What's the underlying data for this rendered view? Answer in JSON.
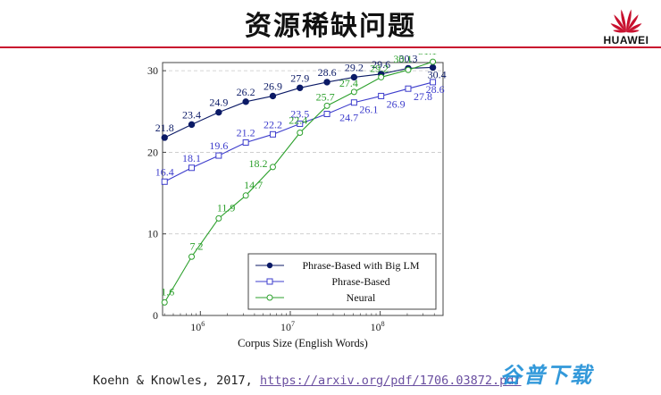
{
  "slide": {
    "title": "资源稀缺问题",
    "logo_text": "HUAWEI",
    "citation_text": "Koehn & Knowles, 2017, ",
    "citation_link": "https://arxiv.org/pdf/1706.03872.pdf",
    "watermark": "谷普下载"
  },
  "colors": {
    "accent_red": "#c8102e",
    "series_bigLM": "#0b1a66",
    "series_phrase": "#3d3dcc",
    "series_neural": "#2ca02c"
  },
  "chart_data": {
    "type": "line",
    "xlabel": "Corpus Size (English Words)",
    "ylabel": "",
    "x_scale": "log",
    "xlim": [
      380000,
      500000000
    ],
    "ylim": [
      0,
      31
    ],
    "x_ticks": [
      {
        "value": 1000000,
        "base": "10",
        "exp": "6"
      },
      {
        "value": 10000000,
        "base": "10",
        "exp": "7"
      },
      {
        "value": 100000000,
        "base": "10",
        "exp": "8"
      }
    ],
    "y_ticks": [
      0,
      10,
      20,
      30
    ],
    "grid": "horizontal dashed",
    "legend_position": "bottom-right",
    "series": [
      {
        "name": "Phrase-Based with Big LM",
        "color": "#0b1a66",
        "marker": "filled-circle",
        "x": [
          400000,
          800000,
          1600000,
          3200000,
          6400000,
          12800000,
          25600000,
          51200000,
          102400000,
          204800000,
          385000000
        ],
        "y": [
          21.8,
          23.4,
          24.9,
          26.2,
          26.9,
          27.9,
          28.6,
          29.2,
          29.6,
          30.3,
          30.4
        ],
        "labels": [
          "21.8",
          "23.4",
          "24.9",
          "26.2",
          "26.9",
          "27.9",
          "28.6",
          "29.2",
          "29.6",
          "30.3",
          "30.4"
        ]
      },
      {
        "name": "Phrase-Based",
        "color": "#3d3dcc",
        "marker": "square",
        "x": [
          400000,
          800000,
          1600000,
          3200000,
          6400000,
          12800000,
          25600000,
          51200000,
          102400000,
          204800000,
          385000000
        ],
        "y": [
          16.4,
          18.1,
          19.6,
          21.2,
          22.2,
          23.5,
          24.7,
          26.1,
          26.9,
          27.8,
          28.6
        ],
        "labels": [
          "16.4",
          "18.1",
          "19.6",
          "21.2",
          "22.2",
          "23.5",
          "24.7",
          "26.1",
          "26.9",
          "27.8",
          "28.6"
        ]
      },
      {
        "name": "Neural",
        "color": "#2ca02c",
        "marker": "open-circle",
        "x": [
          400000,
          800000,
          1600000,
          3200000,
          6400000,
          12800000,
          25600000,
          51200000,
          102400000,
          204800000,
          385000000
        ],
        "y": [
          1.6,
          7.2,
          11.9,
          14.7,
          18.2,
          22.4,
          25.7,
          27.4,
          29.2,
          30.1,
          31.1
        ],
        "labels": [
          "1.6",
          "7.2",
          "11.9",
          "14.7",
          "18.2",
          "22.4",
          "25.7",
          "27.4",
          "29.2",
          "30.1",
          "31.1"
        ]
      }
    ]
  }
}
